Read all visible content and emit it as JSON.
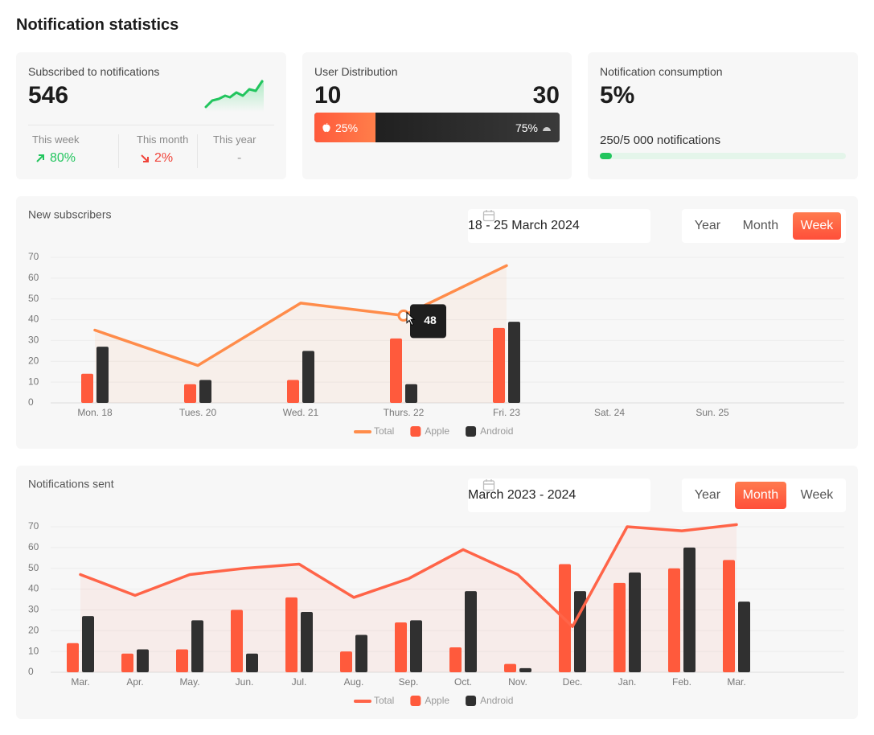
{
  "header": {
    "title": "Notification statistics"
  },
  "cards": {
    "subscribed": {
      "label": "Subscribed to notifications",
      "value": "546",
      "stats": [
        {
          "label": "This week",
          "value": "80%",
          "trend": "up"
        },
        {
          "label": "This month",
          "value": "2%",
          "trend": "down"
        },
        {
          "label": "This year",
          "value": "-"
        }
      ]
    },
    "distribution": {
      "label": "User Distribution",
      "apple_count": "10",
      "android_count": "30",
      "apple_share": {
        "value": 25,
        "label": "25%"
      },
      "android_share": {
        "value": 75,
        "label": "75%"
      }
    },
    "consumption": {
      "label": "Notification consumption",
      "value": {
        "value": 5,
        "label": "5%"
      },
      "detail": "250/5 000 notifications"
    }
  },
  "chart_data": [
    {
      "type": "bar_line",
      "title": "New subscribers",
      "date_range": "18 - 25 March 2024",
      "periods": [
        "Year",
        "Month",
        "Week"
      ],
      "active_period": "Week",
      "categories": [
        "Mon. 18",
        "Tues. 20",
        "Wed. 21",
        "Thurs. 22",
        "Fri. 23",
        "Sat. 24",
        "Sun. 25"
      ],
      "series": [
        {
          "name": "Total",
          "type": "line",
          "color": "#ff8c4a",
          "values": [
            35,
            18,
            48,
            42,
            66,
            null,
            null
          ]
        },
        {
          "name": "Apple",
          "type": "bar",
          "color": "#ff5a3c",
          "values": [
            14,
            9,
            11,
            31,
            36,
            null,
            null
          ]
        },
        {
          "name": "Android",
          "type": "bar",
          "color": "#303030",
          "values": [
            27,
            11,
            25,
            9,
            39,
            null,
            null
          ]
        }
      ],
      "ylim": [
        0,
        70
      ],
      "yticks": [
        0,
        10,
        20,
        30,
        40,
        50,
        60,
        70
      ],
      "grid": true,
      "tooltip": "48"
    },
    {
      "type": "bar_line",
      "title": "Notifications sent",
      "date_range": "March 2023 - 2024",
      "periods": [
        "Year",
        "Month",
        "Week"
      ],
      "active_period": "Month",
      "categories": [
        "Mar.",
        "Apr.",
        "May.",
        "Jun.",
        "Jul.",
        "Aug.",
        "Sep.",
        "Oct.",
        "Nov.",
        "Dec.",
        "Jan.",
        "Feb.",
        "Mar."
      ],
      "series": [
        {
          "name": "Total",
          "type": "line",
          "color": "#ff6448",
          "values": [
            47,
            37,
            47,
            50,
            52,
            36,
            45,
            59,
            47,
            22,
            70,
            68,
            71
          ]
        },
        {
          "name": "Apple",
          "type": "bar",
          "color": "#ff5a3c",
          "values": [
            14,
            9,
            11,
            30,
            36,
            10,
            24,
            12,
            4,
            52,
            43,
            50,
            54
          ]
        },
        {
          "name": "Android",
          "type": "bar",
          "color": "#303030",
          "values": [
            27,
            11,
            25,
            9,
            29,
            18,
            25,
            39,
            2,
            39,
            48,
            60,
            34
          ]
        }
      ],
      "ylim": [
        0,
        70
      ],
      "yticks": [
        0,
        10,
        20,
        30,
        40,
        50,
        60,
        70
      ],
      "grid": true
    }
  ]
}
